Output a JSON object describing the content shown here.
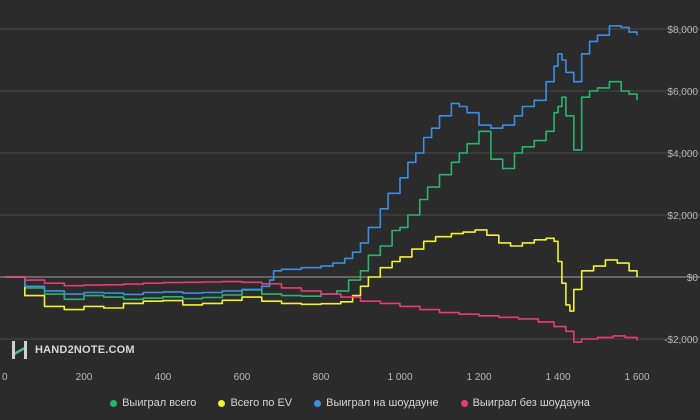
{
  "branding": {
    "logo_text": "HAND2NOTE.COM"
  },
  "colors": {
    "background": "#2b2b2b",
    "grid": "#4a4a4a",
    "zero_line": "#8a8a8a",
    "tick_text": "#b8b8b8"
  },
  "chart_data": {
    "type": "line",
    "x_ticks": [
      0,
      200,
      400,
      600,
      800,
      1000,
      1200,
      1400,
      1600
    ],
    "x_tick_labels": [
      "0",
      "200",
      "400",
      "600",
      "800",
      "1 000",
      "1 200",
      "1 400",
      "1 600"
    ],
    "y_ticks": [
      -2000,
      0,
      2000,
      4000,
      6000,
      8000
    ],
    "y_tick_labels": [
      "-$2,000",
      "$0",
      "$2,000",
      "$4,000",
      "$6,000",
      "$8,000"
    ],
    "xlim": [
      0,
      1600
    ],
    "ylim": [
      -2400,
      8200
    ],
    "grid": true,
    "legend_position": "bottom",
    "series": [
      {
        "name": "Выиграл всего",
        "color": "#2bb56c",
        "points": [
          [
            0,
            0
          ],
          [
            50,
            -350
          ],
          [
            100,
            -550
          ],
          [
            150,
            -720
          ],
          [
            200,
            -600
          ],
          [
            250,
            -650
          ],
          [
            300,
            -720
          ],
          [
            350,
            -680
          ],
          [
            400,
            -640
          ],
          [
            450,
            -700
          ],
          [
            500,
            -660
          ],
          [
            550,
            -580
          ],
          [
            600,
            -420
          ],
          [
            650,
            -550
          ],
          [
            700,
            -600
          ],
          [
            750,
            -620
          ],
          [
            800,
            -550
          ],
          [
            840,
            -450
          ],
          [
            870,
            -100
          ],
          [
            900,
            200
          ],
          [
            920,
            700
          ],
          [
            950,
            1000
          ],
          [
            980,
            1500
          ],
          [
            1000,
            1600
          ],
          [
            1020,
            2000
          ],
          [
            1050,
            2500
          ],
          [
            1070,
            2900
          ],
          [
            1100,
            3300
          ],
          [
            1130,
            3700
          ],
          [
            1150,
            4000
          ],
          [
            1170,
            4300
          ],
          [
            1200,
            4700
          ],
          [
            1230,
            3800
          ],
          [
            1260,
            3500
          ],
          [
            1290,
            4000
          ],
          [
            1310,
            4200
          ],
          [
            1340,
            4400
          ],
          [
            1370,
            4700
          ],
          [
            1390,
            5300
          ],
          [
            1400,
            5500
          ],
          [
            1410,
            5800
          ],
          [
            1420,
            5200
          ],
          [
            1440,
            4100
          ],
          [
            1460,
            5800
          ],
          [
            1480,
            6000
          ],
          [
            1500,
            6100
          ],
          [
            1530,
            6300
          ],
          [
            1560,
            6000
          ],
          [
            1580,
            5900
          ],
          [
            1600,
            5700
          ]
        ]
      },
      {
        "name": "Всего по EV",
        "color": "#f3f03a",
        "points": [
          [
            0,
            0
          ],
          [
            50,
            -600
          ],
          [
            100,
            -950
          ],
          [
            150,
            -1050
          ],
          [
            200,
            -950
          ],
          [
            250,
            -1000
          ],
          [
            300,
            -850
          ],
          [
            350,
            -780
          ],
          [
            400,
            -760
          ],
          [
            450,
            -900
          ],
          [
            500,
            -850
          ],
          [
            550,
            -750
          ],
          [
            600,
            -650
          ],
          [
            650,
            -780
          ],
          [
            700,
            -850
          ],
          [
            750,
            -880
          ],
          [
            800,
            -860
          ],
          [
            850,
            -800
          ],
          [
            880,
            -600
          ],
          [
            900,
            -300
          ],
          [
            920,
            0
          ],
          [
            950,
            300
          ],
          [
            980,
            500
          ],
          [
            1000,
            650
          ],
          [
            1030,
            900
          ],
          [
            1060,
            1150
          ],
          [
            1090,
            1300
          ],
          [
            1130,
            1400
          ],
          [
            1160,
            1450
          ],
          [
            1190,
            1520
          ],
          [
            1220,
            1350
          ],
          [
            1250,
            1100
          ],
          [
            1280,
            1000
          ],
          [
            1310,
            1100
          ],
          [
            1340,
            1200
          ],
          [
            1370,
            1250
          ],
          [
            1390,
            1150
          ],
          [
            1400,
            500
          ],
          [
            1410,
            -200
          ],
          [
            1420,
            -900
          ],
          [
            1430,
            -1100
          ],
          [
            1440,
            -400
          ],
          [
            1460,
            200
          ],
          [
            1490,
            350
          ],
          [
            1520,
            550
          ],
          [
            1550,
            450
          ],
          [
            1580,
            200
          ],
          [
            1600,
            0
          ]
        ]
      },
      {
        "name": "Выиграл на шоудауне",
        "color": "#3a8fe4",
        "points": [
          [
            0,
            0
          ],
          [
            50,
            -300
          ],
          [
            100,
            -450
          ],
          [
            150,
            -550
          ],
          [
            200,
            -500
          ],
          [
            250,
            -520
          ],
          [
            300,
            -560
          ],
          [
            350,
            -500
          ],
          [
            400,
            -480
          ],
          [
            450,
            -520
          ],
          [
            500,
            -500
          ],
          [
            550,
            -450
          ],
          [
            600,
            -400
          ],
          [
            650,
            -300
          ],
          [
            670,
            -100
          ],
          [
            680,
            200
          ],
          [
            700,
            250
          ],
          [
            750,
            300
          ],
          [
            800,
            350
          ],
          [
            830,
            450
          ],
          [
            860,
            600
          ],
          [
            880,
            800
          ],
          [
            900,
            1100
          ],
          [
            920,
            1600
          ],
          [
            950,
            2200
          ],
          [
            970,
            2700
          ],
          [
            1000,
            3200
          ],
          [
            1020,
            3700
          ],
          [
            1040,
            4000
          ],
          [
            1060,
            4500
          ],
          [
            1080,
            4800
          ],
          [
            1100,
            5200
          ],
          [
            1130,
            5600
          ],
          [
            1150,
            5500
          ],
          [
            1170,
            5300
          ],
          [
            1200,
            4900
          ],
          [
            1230,
            4800
          ],
          [
            1260,
            4900
          ],
          [
            1290,
            5200
          ],
          [
            1310,
            5500
          ],
          [
            1340,
            5700
          ],
          [
            1370,
            6300
          ],
          [
            1390,
            6800
          ],
          [
            1400,
            7200
          ],
          [
            1410,
            7000
          ],
          [
            1420,
            6600
          ],
          [
            1440,
            6300
          ],
          [
            1460,
            7200
          ],
          [
            1480,
            7600
          ],
          [
            1500,
            7800
          ],
          [
            1530,
            8100
          ],
          [
            1560,
            8050
          ],
          [
            1580,
            7900
          ],
          [
            1600,
            7800
          ]
        ]
      },
      {
        "name": "Выиграл без шоудауна",
        "color": "#e53d74",
        "points": [
          [
            0,
            0
          ],
          [
            50,
            -100
          ],
          [
            100,
            -200
          ],
          [
            150,
            -280
          ],
          [
            200,
            -260
          ],
          [
            250,
            -250
          ],
          [
            300,
            -230
          ],
          [
            350,
            -200
          ],
          [
            400,
            -180
          ],
          [
            450,
            -170
          ],
          [
            500,
            -160
          ],
          [
            550,
            -150
          ],
          [
            600,
            -170
          ],
          [
            650,
            -220
          ],
          [
            700,
            -350
          ],
          [
            750,
            -450
          ],
          [
            800,
            -550
          ],
          [
            850,
            -650
          ],
          [
            900,
            -780
          ],
          [
            950,
            -850
          ],
          [
            1000,
            -950
          ],
          [
            1050,
            -1050
          ],
          [
            1100,
            -1150
          ],
          [
            1150,
            -1200
          ],
          [
            1200,
            -1250
          ],
          [
            1250,
            -1300
          ],
          [
            1300,
            -1350
          ],
          [
            1350,
            -1450
          ],
          [
            1390,
            -1600
          ],
          [
            1420,
            -1750
          ],
          [
            1440,
            -2100
          ],
          [
            1460,
            -2000
          ],
          [
            1500,
            -1950
          ],
          [
            1540,
            -1900
          ],
          [
            1570,
            -1950
          ],
          [
            1600,
            -2050
          ]
        ]
      }
    ]
  }
}
